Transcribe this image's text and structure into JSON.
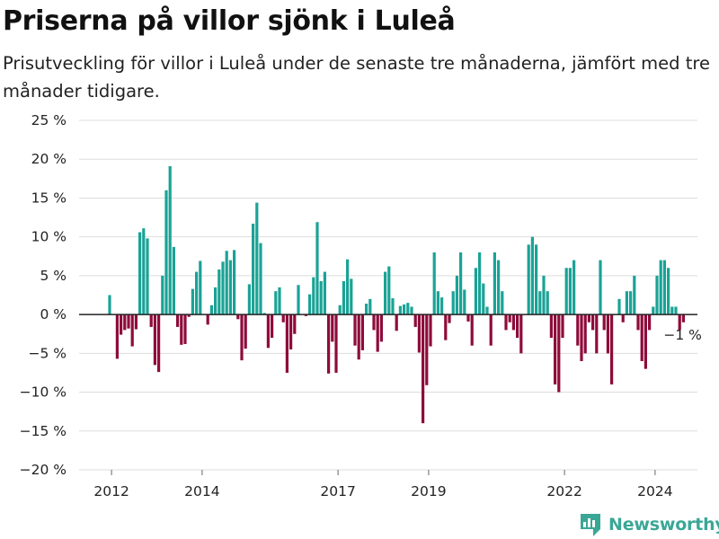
{
  "header": {
    "title": "Priserna på villor sjönk i Luleå",
    "subtitle": "Prisutveckling för villor i Luleå under de senaste tre månaderna, jämfört med tre månader tidigare."
  },
  "branding": {
    "name": "Newsworthy",
    "icon": "bar-chart-logo-icon"
  },
  "colors": {
    "positive": "#1aa396",
    "negative": "#8e0b3a",
    "grid": "#dddddd",
    "zero_line": "#222222"
  },
  "chart_data": {
    "type": "bar",
    "ylim": [
      -20,
      25
    ],
    "yticks": [
      {
        "value": 25,
        "label": "25 %"
      },
      {
        "value": 20,
        "label": "20 %"
      },
      {
        "value": 15,
        "label": "15 %"
      },
      {
        "value": 10,
        "label": "10 %"
      },
      {
        "value": 5,
        "label": "5 %"
      },
      {
        "value": 0,
        "label": "0 %"
      },
      {
        "value": -5,
        "label": "−5 %"
      },
      {
        "value": -10,
        "label": "−10 %"
      },
      {
        "value": -15,
        "label": "−15 %"
      },
      {
        "value": -20,
        "label": "−20 %"
      }
    ],
    "xticks": [
      "2012",
      "2014",
      "2017",
      "2019",
      "2022",
      "2024"
    ],
    "start_year": 2012,
    "grid": true,
    "last_value_label": "−1 %",
    "values": [
      2.5,
      null,
      -5.7,
      -2.6,
      -2.0,
      -1.8,
      -4.1,
      -1.9,
      10.6,
      11.1,
      9.8,
      -1.6,
      -6.5,
      -7.4,
      5.0,
      16.0,
      19.1,
      8.7,
      -1.6,
      -3.9,
      -3.8,
      -0.3,
      3.3,
      5.5,
      6.9,
      null,
      -1.3,
      1.2,
      3.5,
      5.8,
      6.8,
      8.2,
      7.0,
      8.3,
      -0.6,
      -5.9,
      -4.4,
      3.9,
      11.7,
      14.4,
      9.2,
      0.2,
      -4.3,
      -3.0,
      3.0,
      3.5,
      -1.0,
      -7.5,
      -4.5,
      -2.5,
      3.8,
      null,
      -0.2,
      2.6,
      4.8,
      11.9,
      4.3,
      5.5,
      -7.6,
      -3.5,
      -7.5,
      1.2,
      4.3,
      7.1,
      4.6,
      -4.0,
      -5.8,
      -4.6,
      1.4,
      2.0,
      -2.0,
      -4.8,
      -3.5,
      5.5,
      6.2,
      2.1,
      -2.1,
      1.1,
      1.3,
      1.5,
      1.0,
      -1.6,
      -4.9,
      -14.0,
      -9.1,
      -4.1,
      8.0,
      3.0,
      2.2,
      -3.3,
      -1.1,
      3.0,
      5.0,
      8.0,
      3.2,
      -0.9,
      -4.0,
      6.0,
      8.0,
      4.0,
      1.0,
      -4.0,
      8.0,
      7.0,
      3.0,
      -2.0,
      -1.0,
      -2.0,
      -3.0,
      -5.0,
      0.0,
      9.0,
      10.0,
      9.0,
      3.0,
      5.0,
      3.0,
      -3.0,
      -9.0,
      -10.0,
      -3.0,
      6.0,
      6.0,
      7.0,
      -4.0,
      -6.0,
      -5.0,
      -1.0,
      -2.0,
      -5.0,
      7.0,
      -2.0,
      -5.0,
      -9.0,
      0.0,
      2.0,
      -1.0,
      3.0,
      3.0,
      5.0,
      -2.0,
      -6.0,
      -7.0,
      -2.0,
      1.0,
      5.0,
      7.0,
      7.0,
      6.0,
      1.0,
      1.0,
      -2.0,
      -1.0
    ]
  }
}
